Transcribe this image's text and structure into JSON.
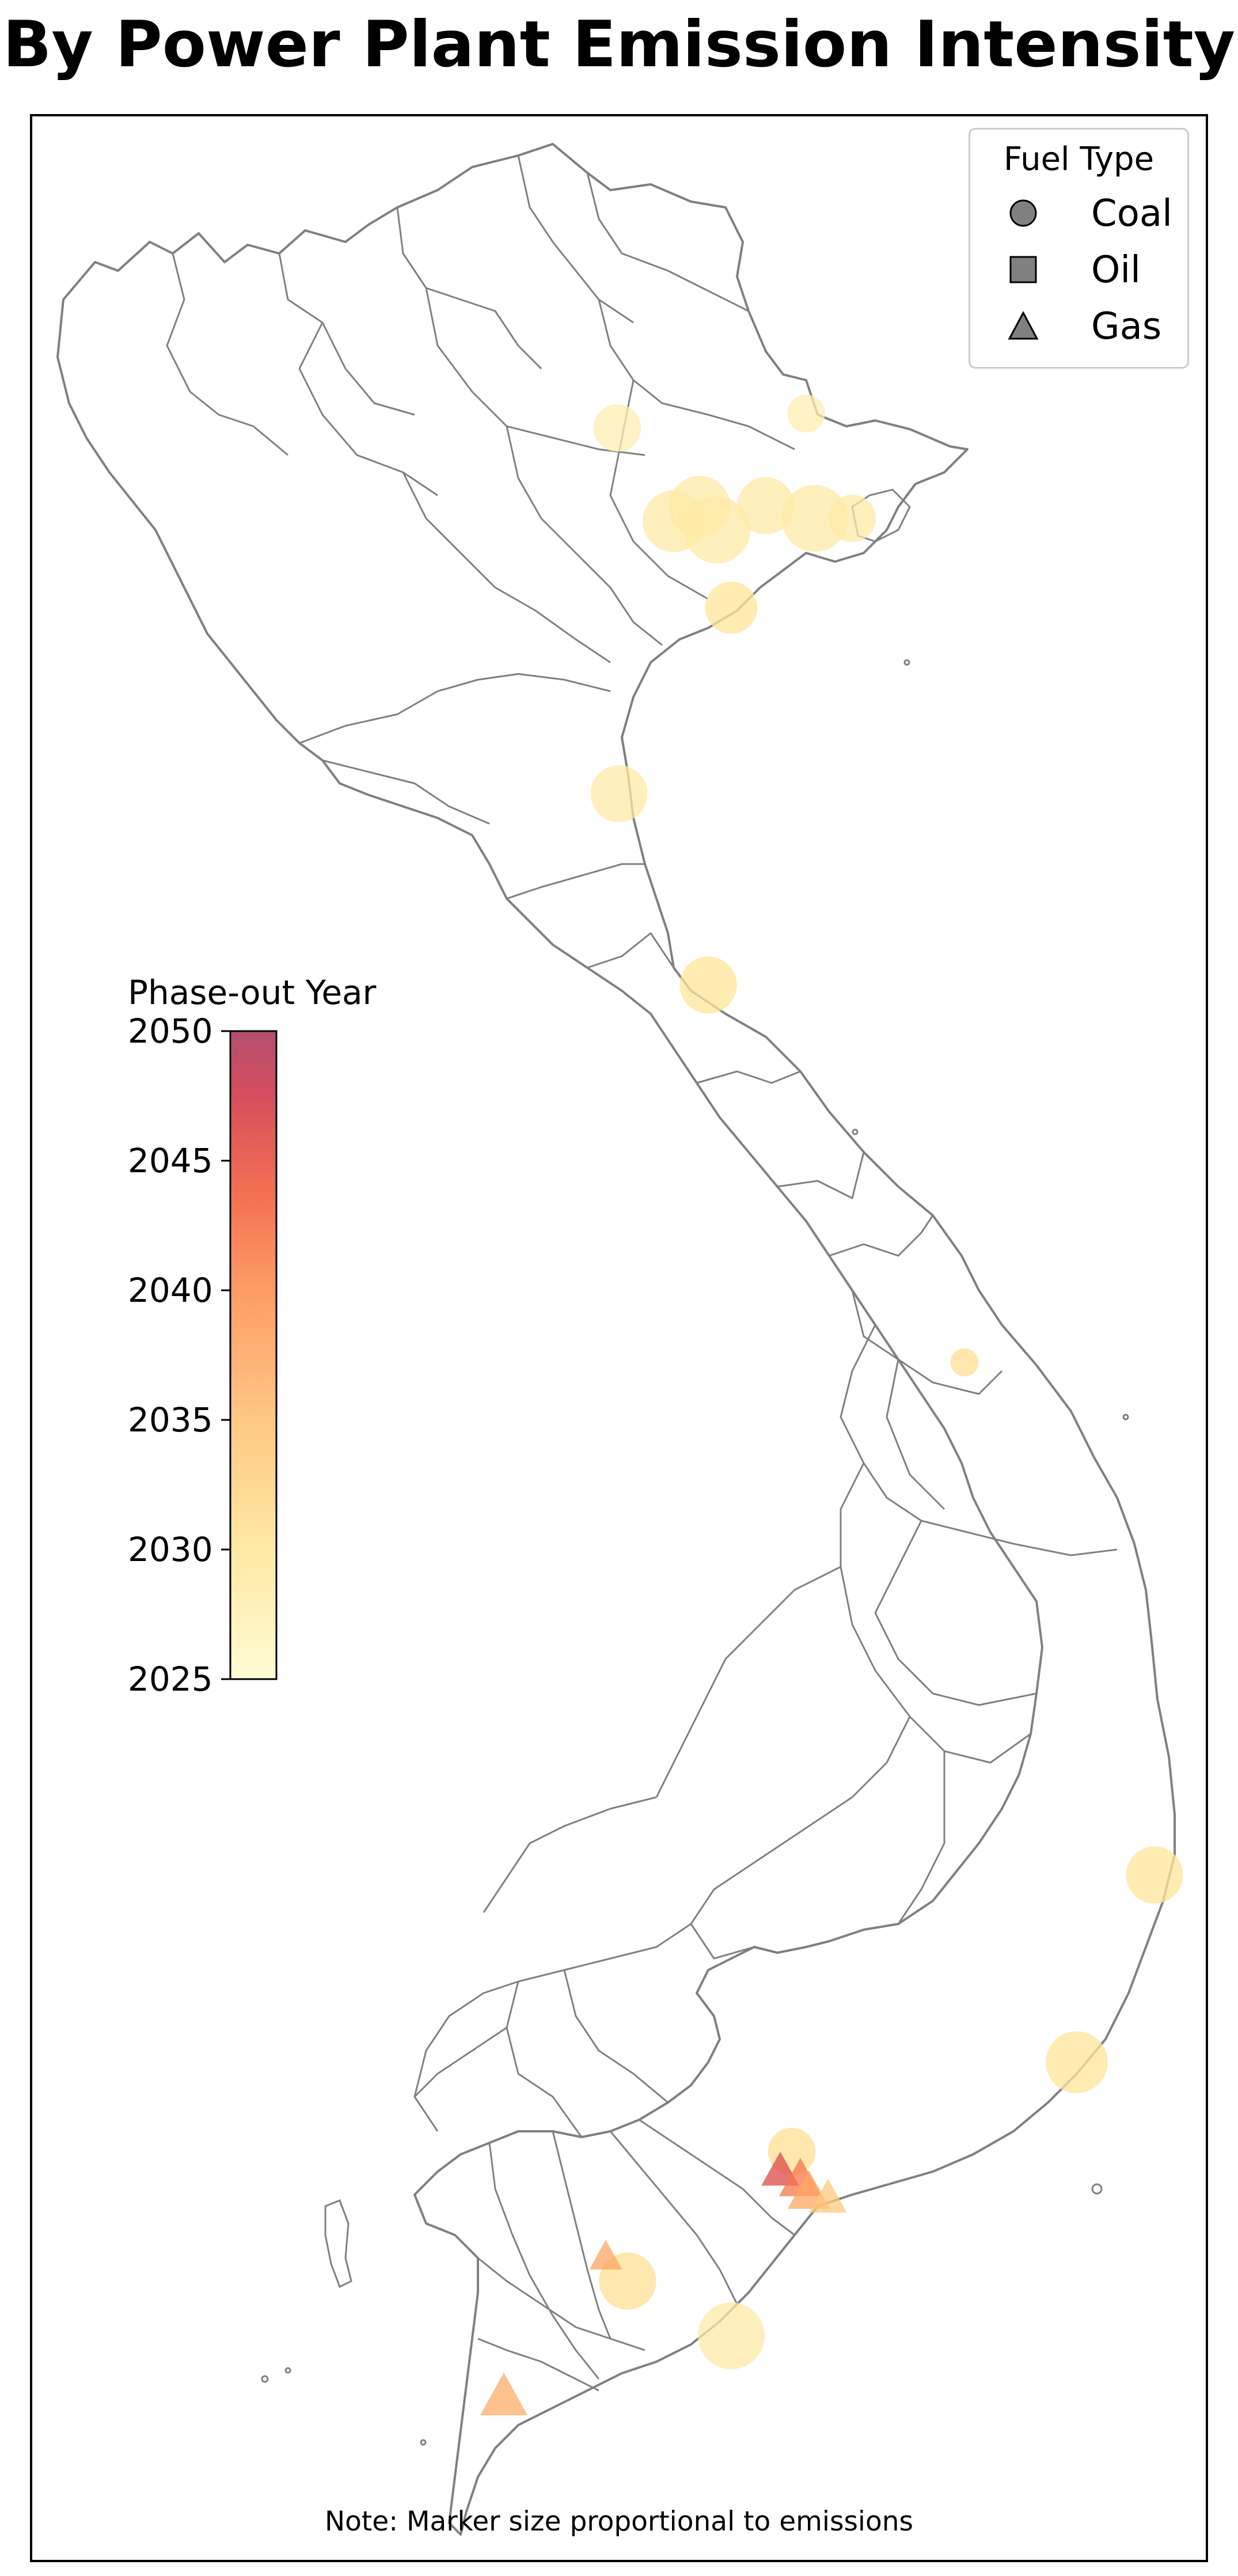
{
  "title": "By Power Plant Emission Intensity",
  "note": "Note: Marker size proportional to emissions",
  "legend": {
    "title": "Fuel Type",
    "items": [
      {
        "label": "Coal",
        "shape": "circle-icon"
      },
      {
        "label": "Oil",
        "shape": "square-icon"
      },
      {
        "label": "Gas",
        "shape": "triangle-icon"
      }
    ]
  },
  "colorbar": {
    "title": "Phase-out Year",
    "min": 2025,
    "max": 2050,
    "ticks": [
      "2050",
      "2045",
      "2040",
      "2035",
      "2030",
      "2025"
    ],
    "colors": [
      "#fffbd0",
      "#ffe69a",
      "#fec277",
      "#fd9155",
      "#f2603f",
      "#d13b4c",
      "#ac3a5f"
    ]
  },
  "chart_data": {
    "type": "scatter",
    "title": "By Power Plant Emission Intensity",
    "color_scale": {
      "label": "Phase-out Year",
      "range": [
        2025,
        2050
      ]
    },
    "size_encoding": "emissions",
    "plants": [
      {
        "fuel": "Coal",
        "phaseout": 2028,
        "emission_rel": 0.6
      },
      {
        "fuel": "Coal",
        "phaseout": 2028,
        "emission_rel": 0.4
      },
      {
        "fuel": "Coal",
        "phaseout": 2029,
        "emission_rel": 0.9
      },
      {
        "fuel": "Coal",
        "phaseout": 2029,
        "emission_rel": 1.0
      },
      {
        "fuel": "Coal",
        "phaseout": 2029,
        "emission_rel": 0.8
      },
      {
        "fuel": "Coal",
        "phaseout": 2029,
        "emission_rel": 1.0
      },
      {
        "fuel": "Coal",
        "phaseout": 2029,
        "emission_rel": 0.6
      },
      {
        "fuel": "Coal",
        "phaseout": 2029,
        "emission_rel": 0.9
      },
      {
        "fuel": "Coal",
        "phaseout": 2030,
        "emission_rel": 0.7
      },
      {
        "fuel": "Coal",
        "phaseout": 2029,
        "emission_rel": 0.8
      },
      {
        "fuel": "Coal",
        "phaseout": 2030,
        "emission_rel": 0.8
      },
      {
        "fuel": "Coal",
        "phaseout": 2031,
        "emission_rel": 0.2
      },
      {
        "fuel": "Coal",
        "phaseout": 2030,
        "emission_rel": 0.8
      },
      {
        "fuel": "Coal",
        "phaseout": 2030,
        "emission_rel": 0.9
      },
      {
        "fuel": "Coal",
        "phaseout": 2031,
        "emission_rel": 0.6
      },
      {
        "fuel": "Coal",
        "phaseout": 2031,
        "emission_rel": 0.8
      },
      {
        "fuel": "Coal",
        "phaseout": 2029,
        "emission_rel": 1.0
      },
      {
        "fuel": "Gas",
        "phaseout": 2046,
        "emission_rel": 0.4
      },
      {
        "fuel": "Gas",
        "phaseout": 2042,
        "emission_rel": 0.5
      },
      {
        "fuel": "Gas",
        "phaseout": 2038,
        "emission_rel": 0.5
      },
      {
        "fuel": "Gas",
        "phaseout": 2034,
        "emission_rel": 0.4
      },
      {
        "fuel": "Gas",
        "phaseout": 2038,
        "emission_rel": 0.3
      },
      {
        "fuel": "Gas",
        "phaseout": 2037,
        "emission_rel": 0.6
      }
    ]
  }
}
